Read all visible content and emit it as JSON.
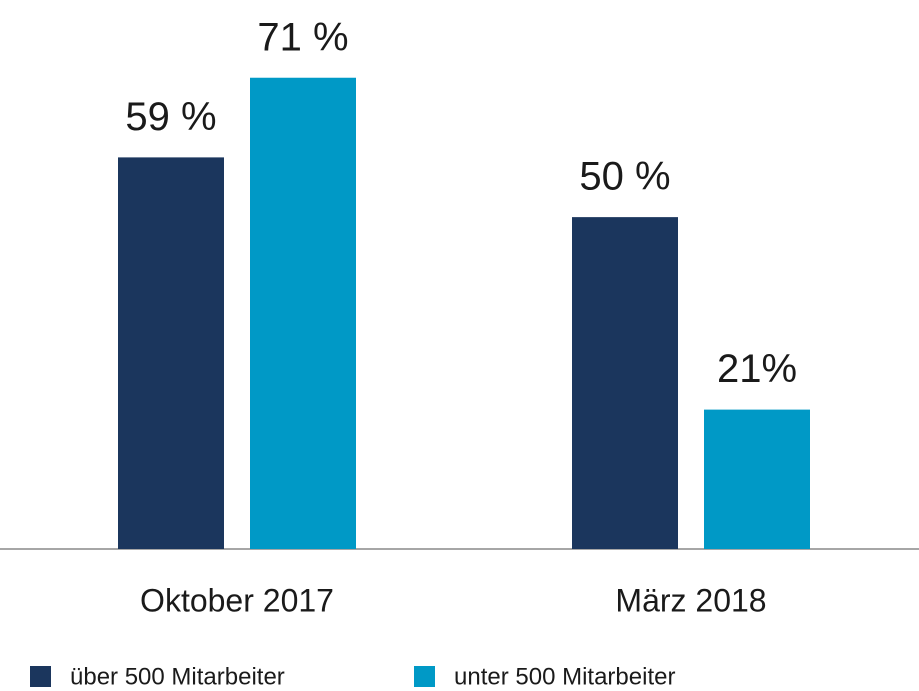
{
  "chart_data": {
    "type": "bar",
    "categories": [
      "Oktober 2017",
      "März 2018"
    ],
    "series": [
      {
        "name": "über 500 Mitarbeiter",
        "color": "#1b365d",
        "values": [
          59,
          50
        ],
        "value_labels": [
          "59 %",
          "50 %"
        ]
      },
      {
        "name": "unter 500 Mitarbeiter",
        "color": "#0099c6",
        "values": [
          71,
          21
        ],
        "value_labels": [
          "71 %",
          "21%"
        ]
      }
    ],
    "ylim": [
      0,
      80
    ]
  }
}
